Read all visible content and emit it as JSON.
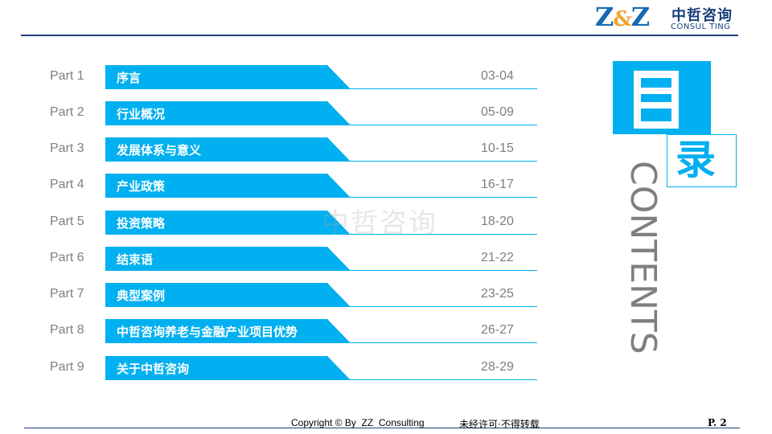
{
  "brand": {
    "logo_letters": "Z&Z",
    "name_cn": "中哲咨询",
    "name_en": "CONSUL TING"
  },
  "toc": {
    "items": [
      {
        "part": "Part 1",
        "title": "序言",
        "pages": "03-04"
      },
      {
        "part": "Part 2",
        "title": "行业概况",
        "pages": "05-09"
      },
      {
        "part": "Part 3",
        "title": "发展体系与意义",
        "pages": "10-15"
      },
      {
        "part": "Part 4",
        "title": "产业政策",
        "pages": "16-17"
      },
      {
        "part": "Part 5",
        "title": "投资策略",
        "pages": "18-20"
      },
      {
        "part": "Part 6",
        "title": "结束语",
        "pages": "21-22"
      },
      {
        "part": "Part 7",
        "title": "典型案例",
        "pages": "23-25"
      },
      {
        "part": "Part 8",
        "title": "中哲咨询养老与金融产业项目优势",
        "pages": "26-27"
      },
      {
        "part": "Part 9",
        "title": "关于中哲咨询",
        "pages": "28-29"
      }
    ]
  },
  "heading": {
    "char_mu": "目",
    "char_lu": "录",
    "contents": "CONTENTS"
  },
  "watermark": "中哲咨询",
  "footer": {
    "copyright": "Copyright © By  ZZ  Consulting",
    "notice": "未经许可·不得转载",
    "page": "P. 2"
  },
  "colors": {
    "accent": "#00b0f0",
    "navy": "#1f3d7a",
    "gray_text": "#7f7f7f"
  }
}
